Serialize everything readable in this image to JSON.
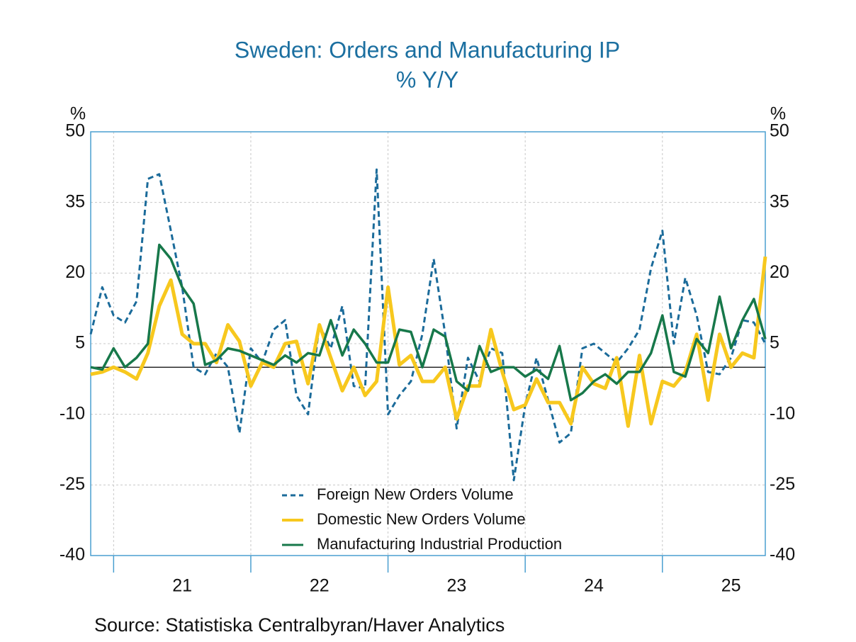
{
  "chart_data": {
    "type": "line",
    "title": "Sweden: Orders and Manufacturing IP",
    "subtitle": "% Y/Y",
    "ylabel": "%",
    "y2label": "%",
    "source": "Source:  Statistiska Centralbyran/Haver Analytics",
    "x": [
      2020.833,
      2020.917,
      2021,
      2021.083,
      2021.167,
      2021.25,
      2021.333,
      2021.417,
      2021.5,
      2021.583,
      2021.667,
      2021.75,
      2021.833,
      2021.917,
      2022,
      2022.083,
      2022.167,
      2022.25,
      2022.333,
      2022.417,
      2022.5,
      2022.583,
      2022.667,
      2022.75,
      2022.833,
      2022.917,
      2023,
      2023.083,
      2023.167,
      2023.25,
      2023.333,
      2023.417,
      2023.5,
      2023.583,
      2023.667,
      2023.75,
      2023.833,
      2023.917,
      2024,
      2024.083,
      2024.167,
      2024.25,
      2024.333,
      2024.417,
      2024.5,
      2024.583,
      2024.667,
      2024.75,
      2024.833,
      2024.917,
      2025,
      2025.083,
      2025.167,
      2025.25,
      2025.333,
      2025.417,
      2025.5,
      2025.583,
      2025.667,
      2025.75
    ],
    "series": [
      {
        "name": "Foreign New Orders Volume",
        "color": "#1b6b9a",
        "dash": true,
        "values": [
          7,
          17,
          11,
          9.5,
          14,
          40,
          41,
          29,
          17,
          0,
          -1.5,
          3,
          0,
          -14,
          4,
          1,
          8,
          10,
          -6,
          -10,
          9,
          4,
          13,
          -4,
          -4.5,
          42,
          -10,
          -6,
          -3,
          7,
          23,
          7,
          -13,
          2,
          -3,
          4,
          3,
          -24,
          -8,
          2,
          -7,
          -16,
          -14,
          4,
          5,
          3,
          1,
          4,
          8,
          21,
          29,
          5,
          19,
          11,
          -1,
          -1.5,
          2,
          10,
          9.5,
          5
        ]
      },
      {
        "name": "Domestic New Orders Volume",
        "color": "#f7c81e",
        "dash": false,
        "values": [
          -1.5,
          -1,
          0,
          -1,
          -2.5,
          3,
          13,
          18.5,
          7,
          5,
          5,
          1,
          9,
          5.5,
          -4,
          1,
          0,
          5,
          5.5,
          -3.5,
          9,
          2,
          -5,
          0,
          -6,
          -3,
          17,
          0.5,
          2.5,
          -3,
          -3,
          0,
          -11,
          -4,
          -4,
          8,
          -1,
          -9,
          -8,
          -2.5,
          -7.5,
          -7.5,
          -12,
          0,
          -3.5,
          -4.5,
          2,
          -12.5,
          2.5,
          -12,
          -3,
          -4,
          -1,
          7,
          -7,
          7,
          0,
          3,
          2,
          23.5
        ]
      },
      {
        "name": "Manufacturing Industrial Production",
        "color": "#17784a",
        "dash": false,
        "values": [
          0,
          -0.5,
          4,
          0,
          2,
          5,
          26,
          23,
          17,
          13.5,
          0.5,
          1.5,
          4,
          3.5,
          2.5,
          1.5,
          0.5,
          2.5,
          1,
          3,
          2.5,
          10,
          2.5,
          8,
          5,
          1,
          1,
          8,
          7.5,
          0,
          8,
          6.5,
          -3,
          -5,
          4.5,
          -1,
          0,
          0,
          -2,
          -0.5,
          -2.5,
          4.5,
          -7,
          -5.5,
          -3,
          -1.5,
          -3.5,
          -1,
          -1,
          3,
          11,
          -1,
          -2,
          6,
          3,
          15,
          4,
          10,
          14.5,
          6
        ]
      }
    ],
    "xlim": [
      2020.833,
      2025.75
    ],
    "xticks": [
      {
        "value": 2021.5,
        "label": "21"
      },
      {
        "value": 2022.5,
        "label": "22"
      },
      {
        "value": 2023.5,
        "label": "23"
      },
      {
        "value": 2024.5,
        "label": "24"
      },
      {
        "value": 2025.5,
        "label": "25"
      }
    ],
    "x_minor_ticks": [
      2021,
      2022,
      2023,
      2024,
      2025
    ],
    "ylim": [
      -40,
      50
    ],
    "yticks": [
      50,
      35,
      20,
      5,
      -10,
      -25,
      -40
    ],
    "y2lim": [
      -40,
      50
    ],
    "y2ticks": [
      50,
      35,
      20,
      5,
      -10,
      -25,
      -40
    ],
    "grid": true
  }
}
